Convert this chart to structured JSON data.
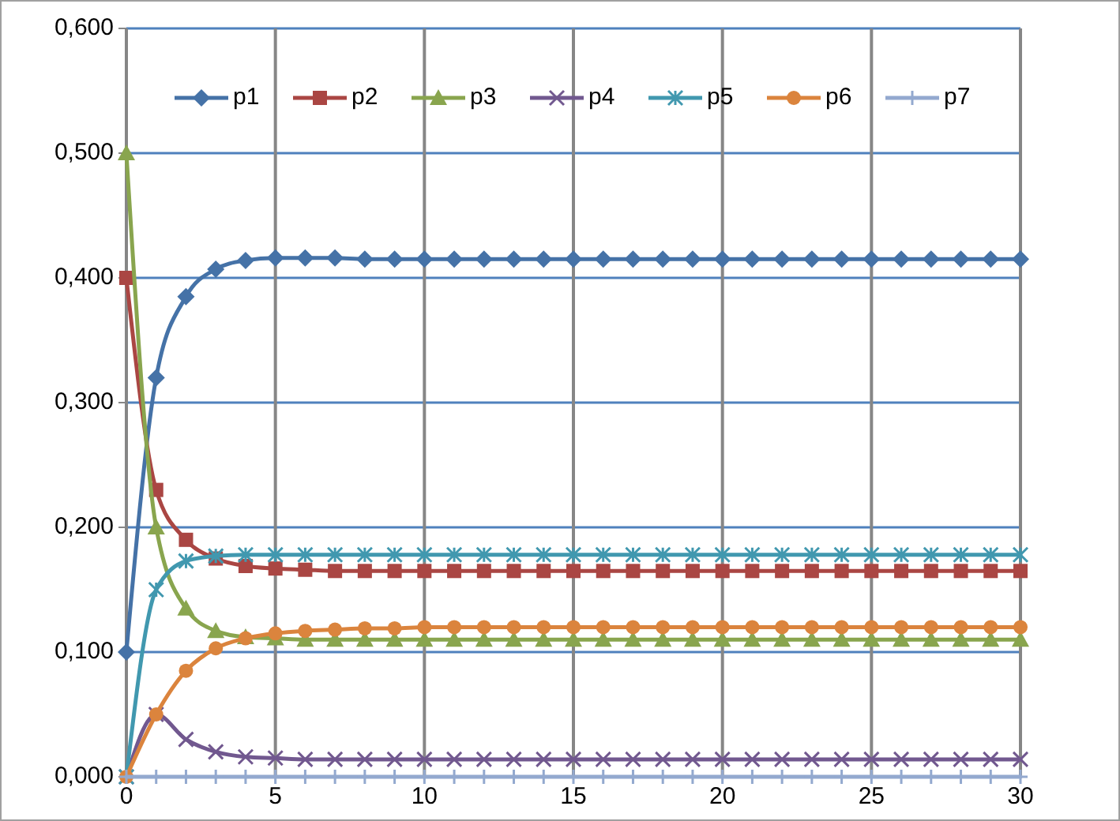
{
  "chart_data": {
    "type": "line",
    "x": [
      0,
      1,
      2,
      3,
      4,
      5,
      6,
      7,
      8,
      9,
      10,
      11,
      12,
      13,
      14,
      15,
      16,
      17,
      18,
      19,
      20,
      21,
      22,
      23,
      24,
      25,
      26,
      27,
      28,
      29,
      30
    ],
    "xlim": [
      0,
      30
    ],
    "xticks": [
      0,
      5,
      10,
      15,
      20,
      25,
      30
    ],
    "ylim": [
      0,
      0.6
    ],
    "yticks": [
      {
        "value": 0,
        "label": "0,000"
      },
      {
        "value": 0.1,
        "label": "0,100"
      },
      {
        "value": 0.2,
        "label": "0,200"
      },
      {
        "value": 0.3,
        "label": "0,300"
      },
      {
        "value": 0.4,
        "label": "0,400"
      },
      {
        "value": 0.5,
        "label": "0,500"
      },
      {
        "value": 0.6,
        "label": "0,600"
      }
    ],
    "grid": true,
    "legend": "top",
    "line_style": "solid",
    "series": [
      {
        "name": "p1",
        "color": "#4572a7",
        "marker": "diamond",
        "values": [
          0.1,
          0.32,
          0.385,
          0.407,
          0.414,
          0.416,
          0.416,
          0.416,
          0.415,
          0.415,
          0.415,
          0.415,
          0.415,
          0.415,
          0.415,
          0.415,
          0.415,
          0.415,
          0.415,
          0.415,
          0.415,
          0.415,
          0.415,
          0.415,
          0.415,
          0.415,
          0.415,
          0.415,
          0.415,
          0.415,
          0.415
        ]
      },
      {
        "name": "p2",
        "color": "#aa4643",
        "marker": "square",
        "values": [
          0.4,
          0.23,
          0.19,
          0.175,
          0.169,
          0.167,
          0.166,
          0.165,
          0.165,
          0.165,
          0.165,
          0.165,
          0.165,
          0.165,
          0.165,
          0.165,
          0.165,
          0.165,
          0.165,
          0.165,
          0.165,
          0.165,
          0.165,
          0.165,
          0.165,
          0.165,
          0.165,
          0.165,
          0.165,
          0.165,
          0.165
        ]
      },
      {
        "name": "p3",
        "color": "#89a54e",
        "marker": "triangle",
        "values": [
          0.5,
          0.2,
          0.135,
          0.117,
          0.112,
          0.111,
          0.11,
          0.11,
          0.11,
          0.11,
          0.11,
          0.11,
          0.11,
          0.11,
          0.11,
          0.11,
          0.11,
          0.11,
          0.11,
          0.11,
          0.11,
          0.11,
          0.11,
          0.11,
          0.11,
          0.11,
          0.11,
          0.11,
          0.11,
          0.11,
          0.11
        ]
      },
      {
        "name": "p4",
        "color": "#71588f",
        "marker": "cross",
        "values": [
          0,
          0.05,
          0.03,
          0.02,
          0.016,
          0.015,
          0.014,
          0.014,
          0.014,
          0.014,
          0.014,
          0.014,
          0.014,
          0.014,
          0.014,
          0.014,
          0.014,
          0.014,
          0.014,
          0.014,
          0.014,
          0.014,
          0.014,
          0.014,
          0.014,
          0.014,
          0.014,
          0.014,
          0.014,
          0.014,
          0.014
        ]
      },
      {
        "name": "p5",
        "color": "#4198af",
        "marker": "cross",
        "values": [
          0,
          0.15,
          0.173,
          0.177,
          0.178,
          0.178,
          0.178,
          0.178,
          0.178,
          0.178,
          0.178,
          0.178,
          0.178,
          0.178,
          0.178,
          0.178,
          0.178,
          0.178,
          0.178,
          0.178,
          0.178,
          0.178,
          0.178,
          0.178,
          0.178,
          0.178,
          0.178,
          0.178,
          0.178,
          0.178,
          0.178
        ]
      },
      {
        "name": "p6",
        "color": "#db843d",
        "marker": "circle",
        "values": [
          0,
          0.05,
          0.085,
          0.103,
          0.111,
          0.115,
          0.117,
          0.118,
          0.119,
          0.119,
          0.12,
          0.12,
          0.12,
          0.12,
          0.12,
          0.12,
          0.12,
          0.12,
          0.12,
          0.12,
          0.12,
          0.12,
          0.12,
          0.12,
          0.12,
          0.12,
          0.12,
          0.12,
          0.12,
          0.12,
          0.12
        ]
      },
      {
        "name": "p7",
        "color": "#93a9cf",
        "marker": "cross",
        "values": [
          0,
          0,
          0,
          0,
          0,
          0,
          0,
          0,
          0,
          0,
          0,
          0,
          0,
          0,
          0,
          0,
          0,
          0,
          0,
          0,
          0,
          0,
          0,
          0,
          0,
          0,
          0,
          0,
          0,
          0,
          0
        ]
      }
    ]
  }
}
